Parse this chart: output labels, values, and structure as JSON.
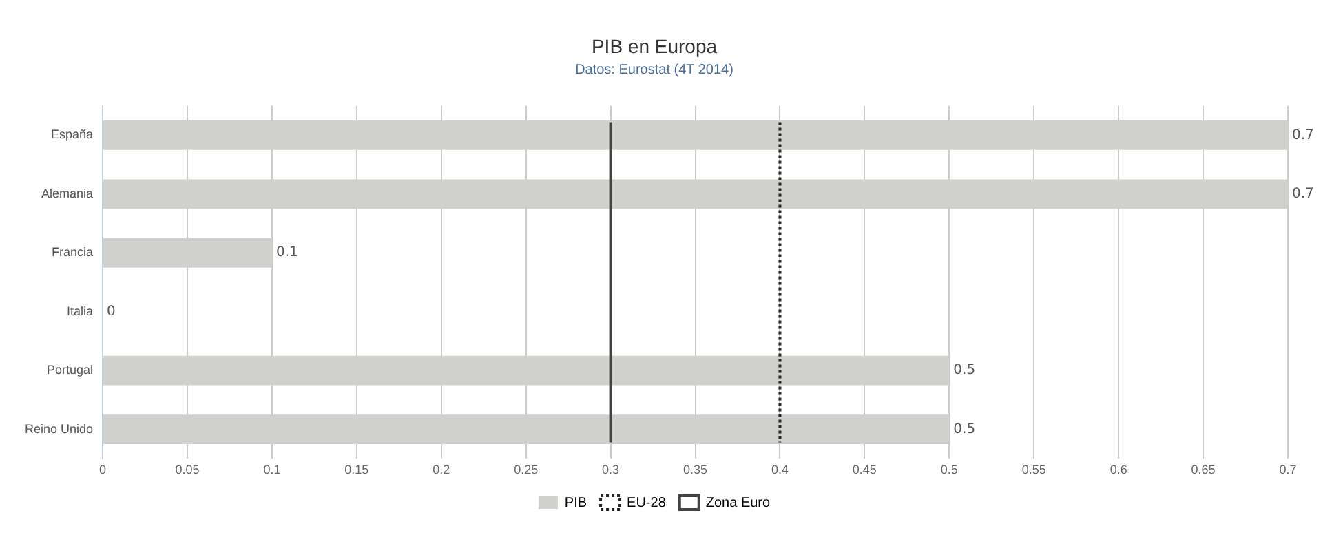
{
  "chart_data": {
    "type": "bar",
    "orientation": "horizontal",
    "title": "PIB en Europa",
    "subtitle": "Datos: Eurostat (4T 2014)",
    "categories": [
      "España",
      "Alemania",
      "Francia",
      "Italia",
      "Portugal",
      "Reino Unido"
    ],
    "series": [
      {
        "name": "PIB",
        "color": "#d0d0cc",
        "values": [
          0.7,
          0.7,
          0.1,
          0,
          0.5,
          0.5
        ]
      }
    ],
    "xlim": [
      0,
      0.7
    ],
    "xticks": [
      0,
      0.05,
      0.1,
      0.15,
      0.2,
      0.25,
      0.3,
      0.35,
      0.4,
      0.45,
      0.5,
      0.55,
      0.6,
      0.65,
      0.7
    ],
    "ref_lines": [
      {
        "axis": "x",
        "value": 0.4,
        "label": "EU-28",
        "color": "#222222",
        "line_style": "dotted"
      },
      {
        "axis": "x",
        "value": 0.3,
        "label": "Zona Euro",
        "color": "#444444",
        "line_style": "solid"
      }
    ],
    "data_labels": true,
    "grid": "x",
    "legend": "bottom"
  }
}
